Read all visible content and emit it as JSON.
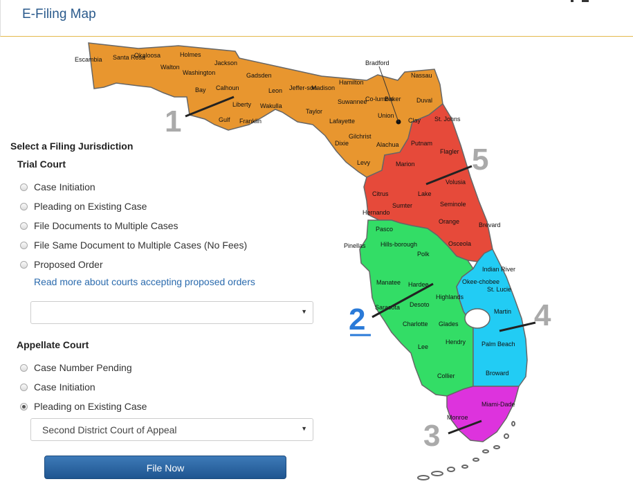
{
  "header": {
    "title": "E-Filing Map"
  },
  "form": {
    "heading": "Select a Filing Jurisdiction",
    "trial": {
      "title": "Trial Court",
      "options": [
        "Case Initiation",
        "Pleading on Existing Case",
        "File Documents to Multiple Cases",
        "File Same Document to Multiple Cases (No Fees)",
        "Proposed Order"
      ],
      "link": "Read more about courts accepting proposed orders",
      "select_value": ""
    },
    "appellate": {
      "title": "Appellate Court",
      "options": [
        "Case Number Pending",
        "Case Initiation",
        "Pleading on Existing Case"
      ],
      "selected": "Pleading on Existing Case",
      "select_value": "Second District Court of Appeal"
    },
    "button": "File Now"
  },
  "map": {
    "districts": [
      {
        "num": "1",
        "color": "#e8962f"
      },
      {
        "num": "2",
        "color": "#33dd66"
      },
      {
        "num": "3",
        "color": "#dd33dd"
      },
      {
        "num": "4",
        "color": "#22ccf4"
      },
      {
        "num": "5",
        "color": "#e64a3a"
      }
    ],
    "counties": [
      "Escambia",
      "Santa Rosa",
      "Okaloosa",
      "Walton",
      "Holmes",
      "Washington",
      "Jackson",
      "Bay",
      "Calhoun",
      "Gulf",
      "Liberty",
      "Gadsden",
      "Leon",
      "Wakulla",
      "Franklin",
      "Jeffer-son",
      "Madison",
      "Taylor",
      "Hamilton",
      "Suwannee",
      "Co-lumbia",
      "Lafayette",
      "Dixie",
      "Gilchrist",
      "Levy",
      "Alachua",
      "Union",
      "Bradford",
      "Baker",
      "Nassau",
      "Duval",
      "Clay",
      "St. Johns",
      "Putnam",
      "Flagler",
      "Marion",
      "Volusia",
      "Citrus",
      "Lake",
      "Seminole",
      "Sumter",
      "Hernando",
      "Orange",
      "Brevard",
      "Osceola",
      "Pasco",
      "Hills-borough",
      "Pinellas",
      "Polk",
      "Manatee",
      "Hardee",
      "Highlands",
      "Sarasota",
      "Desoto",
      "Charlotte",
      "Glades",
      "Lee",
      "Hendry",
      "Collier",
      "Okee-chobee",
      "Indian River",
      "St. Lucie",
      "Martin",
      "Palm Beach",
      "Broward",
      "Miami-Dade",
      "Monroe"
    ]
  }
}
